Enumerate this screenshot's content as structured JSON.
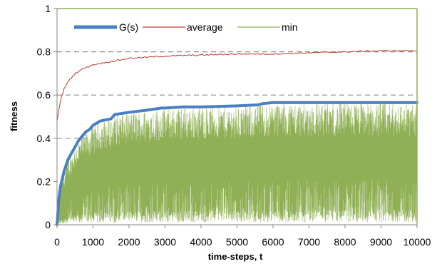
{
  "chart_data": {
    "type": "line",
    "title": "",
    "xlabel": "time-steps, t",
    "ylabel": "fitness",
    "xlim": [
      0,
      10000
    ],
    "ylim": [
      0,
      1
    ],
    "x_ticks": [
      0,
      1000,
      2000,
      3000,
      4000,
      5000,
      6000,
      7000,
      8000,
      9000,
      10000
    ],
    "x_tick_labels": [
      "0",
      "1000",
      "2000",
      "3000",
      "4000",
      "5000",
      "6000",
      "7000",
      "8000",
      "9000",
      "10000"
    ],
    "y_ticks": [
      0,
      0.2,
      0.4,
      0.6,
      0.8,
      1
    ],
    "y_tick_labels": [
      "0",
      "0.2",
      "0.4",
      "0.6",
      "0.8",
      "1"
    ],
    "grid": "dashed horizontal lines at 0.4, 0.6, 0.8",
    "legend": {
      "placement": "top-left",
      "entries": [
        "G(s)",
        "average",
        "min"
      ]
    },
    "series": [
      {
        "name": "G(s)",
        "color": "#4a7fc1",
        "x": [
          0,
          50,
          100,
          200,
          300,
          400,
          500,
          600,
          700,
          800,
          900,
          1000,
          1200,
          1500,
          1600,
          2000,
          2500,
          2900,
          3000,
          3500,
          4000,
          5000,
          5600,
          5700,
          6000,
          7000,
          8000,
          9000,
          10000
        ],
        "values": [
          0.0,
          0.12,
          0.18,
          0.25,
          0.3,
          0.33,
          0.36,
          0.39,
          0.41,
          0.43,
          0.44,
          0.46,
          0.48,
          0.49,
          0.51,
          0.52,
          0.53,
          0.54,
          0.54,
          0.545,
          0.545,
          0.55,
          0.555,
          0.56,
          0.565,
          0.565,
          0.565,
          0.565,
          0.565
        ]
      },
      {
        "name": "average",
        "color": "#c0392b",
        "x": [
          0,
          100,
          200,
          300,
          500,
          700,
          1000,
          1500,
          2000,
          2500,
          3000,
          4000,
          5000,
          6000,
          7000,
          8000,
          9000,
          10000
        ],
        "values": [
          0.48,
          0.58,
          0.63,
          0.66,
          0.7,
          0.72,
          0.74,
          0.755,
          0.77,
          0.775,
          0.78,
          0.785,
          0.79,
          0.79,
          0.795,
          0.8,
          0.805,
          0.805
        ]
      },
      {
        "name": "min",
        "color": "#8fb054",
        "description_range": "oscillates between ~0 and the G(s) value at every time-step",
        "x": [
          0,
          10000
        ],
        "values": [
          0,
          0.565
        ]
      }
    ]
  }
}
